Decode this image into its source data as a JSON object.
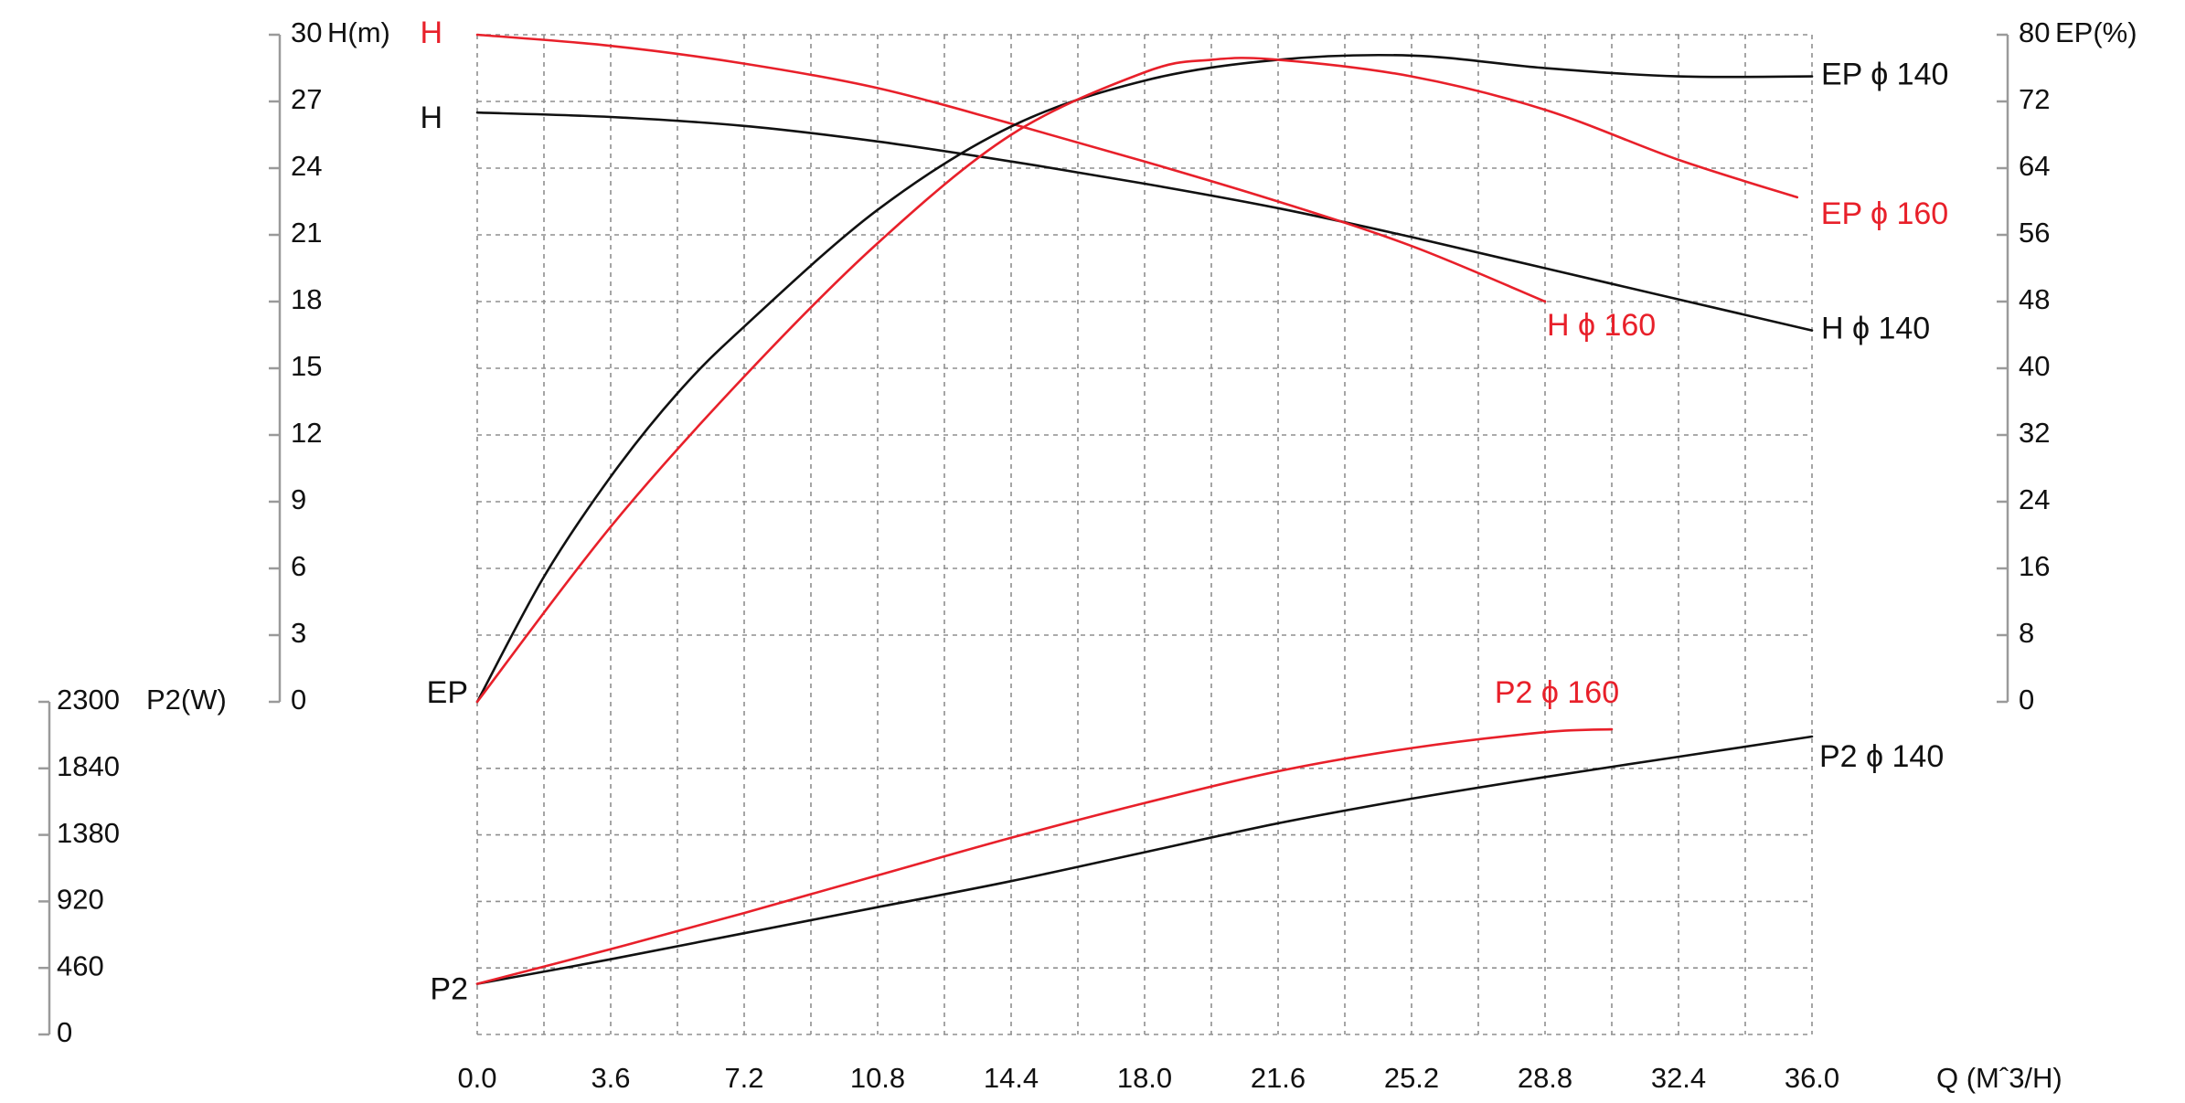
{
  "chart_data": {
    "type": "line",
    "title": "",
    "colors": {
      "d140": "#111111",
      "d160": "#e8202a"
    },
    "x_axis": {
      "label": "Q (Mˆ3/H)",
      "range": [
        0,
        36
      ],
      "ticks": [
        {
          "value": 0,
          "label": "0.0"
        },
        {
          "value": 3.6,
          "label": "3.6"
        },
        {
          "value": 7.2,
          "label": "7.2"
        },
        {
          "value": 10.8,
          "label": "10.8"
        },
        {
          "value": 14.4,
          "label": "14.4"
        },
        {
          "value": 18.0,
          "label": "18.0"
        },
        {
          "value": 21.6,
          "label": "21.6"
        },
        {
          "value": 25.2,
          "label": "25.2"
        },
        {
          "value": 28.8,
          "label": "28.8"
        },
        {
          "value": 32.4,
          "label": "32.4"
        },
        {
          "value": 36.0,
          "label": "36.0"
        }
      ]
    },
    "h_axis": {
      "label": "H(m)",
      "range": [
        0,
        30
      ],
      "ticks": [
        "0",
        "3",
        "6",
        "9",
        "12",
        "15",
        "18",
        "21",
        "24",
        "27",
        "30"
      ]
    },
    "ep_axis": {
      "label": "EP(%)",
      "range": [
        0,
        80
      ],
      "ticks": [
        "0",
        "8",
        "16",
        "24",
        "32",
        "40",
        "48",
        "56",
        "64",
        "72",
        "80"
      ]
    },
    "p2_axis": {
      "label": "P2(W)",
      "range": [
        0,
        2300
      ],
      "ticks": [
        "0",
        "460",
        "920",
        "1380",
        "1840",
        "2300"
      ]
    },
    "start_labels": {
      "h_140": "H",
      "h_160": "H",
      "ep": "EP",
      "p2": "P2"
    },
    "series": [
      {
        "name": "H ϕ 140",
        "quantity": "H",
        "color": "#111111",
        "label_anchor": "end-right",
        "x": [
          0,
          3.6,
          7.2,
          10.8,
          14.4,
          18.0,
          21.6,
          25.2,
          28.8,
          32.4,
          36.0
        ],
        "y": [
          26.5,
          26.3,
          25.9,
          25.2,
          24.3,
          23.3,
          22.2,
          20.9,
          19.5,
          18.1,
          16.7
        ]
      },
      {
        "name": "H ϕ 160",
        "quantity": "H",
        "color": "#e8202a",
        "label_anchor": "end-below",
        "x": [
          0,
          3.6,
          7.2,
          10.8,
          14.4,
          18.0,
          21.6,
          25.2,
          28.8
        ],
        "y": [
          30.0,
          29.5,
          28.7,
          27.6,
          26.0,
          24.3,
          22.5,
          20.5,
          18.0
        ]
      },
      {
        "name": "EP ϕ 140",
        "quantity": "EP",
        "color": "#111111",
        "label_anchor": "end-right",
        "x": [
          0,
          1.8,
          3.6,
          5.4,
          7.2,
          10.8,
          14.4,
          18.0,
          21.6,
          25.2,
          28.8,
          32.4,
          36.0
        ],
        "y": [
          0,
          15,
          27,
          37,
          45,
          59,
          69,
          74.5,
          77,
          77.5,
          76,
          75,
          75
        ]
      },
      {
        "name": "EP ϕ 160",
        "quantity": "EP",
        "color": "#e8202a",
        "label_anchor": "end-below",
        "x": [
          0,
          3.6,
          7.2,
          10.8,
          14.4,
          18.0,
          19.8,
          21.6,
          25.2,
          28.8,
          32.4,
          35.6
        ],
        "y": [
          0,
          21,
          39,
          55,
          68,
          75.5,
          77,
          77,
          75,
          71,
          65,
          60.5
        ]
      },
      {
        "name": "P2 ϕ 140",
        "quantity": "P2",
        "color": "#111111",
        "label_anchor": "end-below",
        "x": [
          0,
          3.6,
          7.2,
          10.8,
          14.4,
          18.0,
          21.6,
          25.2,
          28.8,
          32.4,
          36.0
        ],
        "y": [
          350,
          520,
          700,
          880,
          1060,
          1260,
          1460,
          1630,
          1780,
          1920,
          2060
        ]
      },
      {
        "name": "P2 ϕ 160",
        "quantity": "P2",
        "color": "#e8202a",
        "label_anchor": "end-above",
        "x": [
          0,
          3.6,
          7.2,
          10.8,
          14.4,
          18.0,
          21.6,
          25.2,
          28.8,
          30.6
        ],
        "y": [
          350,
          590,
          840,
          1100,
          1360,
          1600,
          1820,
          1980,
          2090,
          2110
        ]
      }
    ]
  }
}
